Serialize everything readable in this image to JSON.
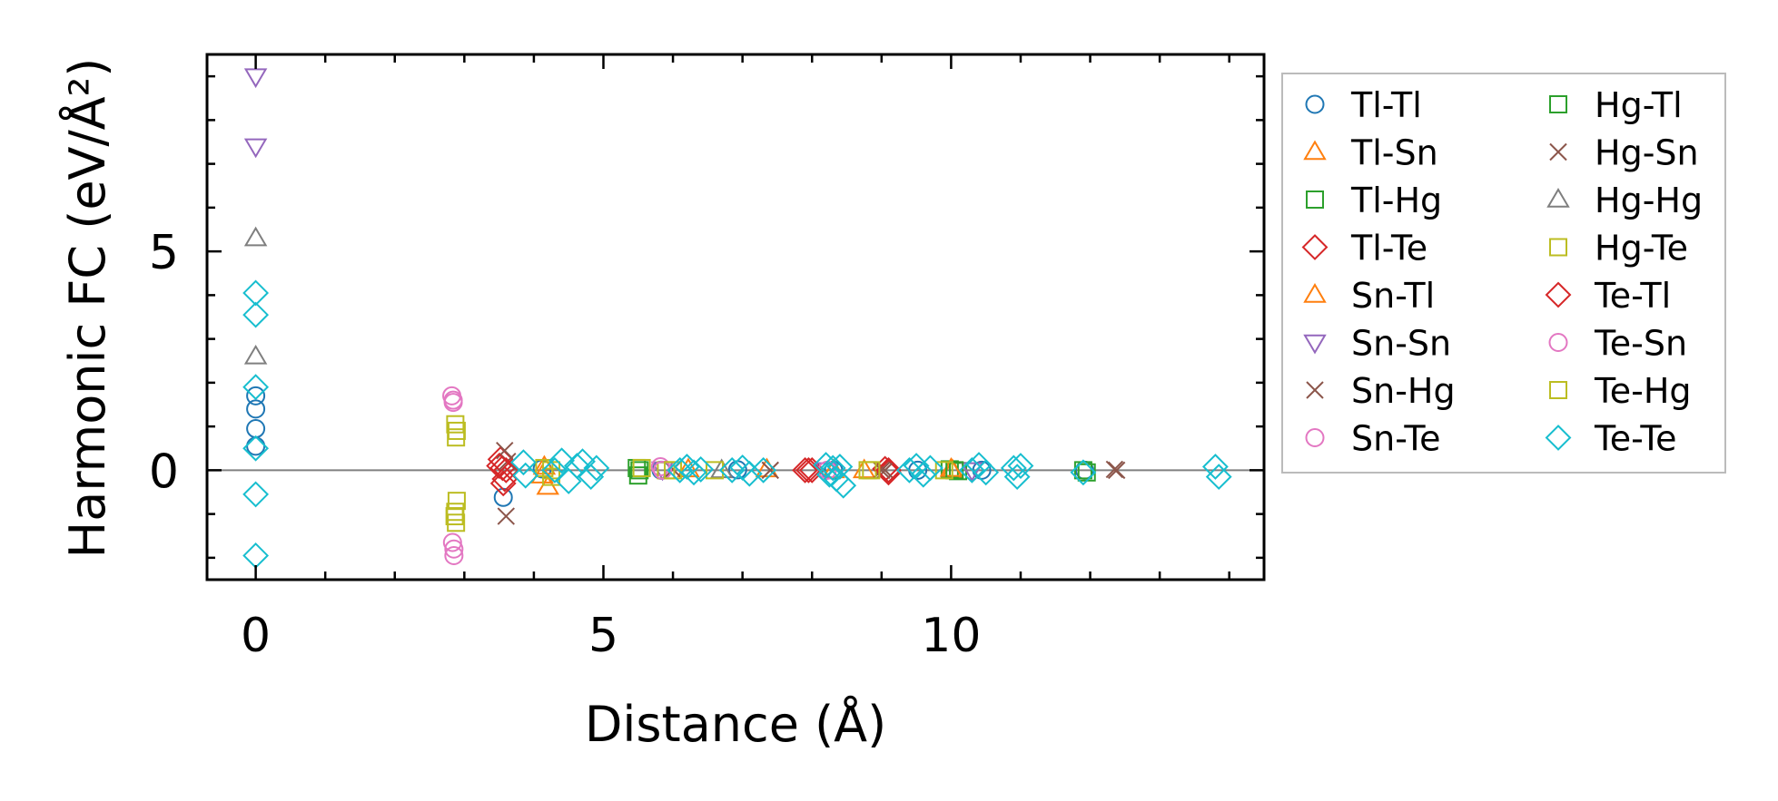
{
  "chart_data": {
    "type": "scatter",
    "xlabel": "Distance (Å)",
    "ylabel": "Harmonic FC (eV/Å²)",
    "xlim": [
      -0.7,
      14.5
    ],
    "ylim": [
      -2.5,
      9.5
    ],
    "x_ticks": [
      0,
      5,
      10
    ],
    "x_tick_labels": [
      "0",
      "5",
      "10"
    ],
    "y_ticks": [
      0,
      5
    ],
    "y_tick_labels": [
      "0",
      "5"
    ],
    "grid": false,
    "zero_line": true,
    "legend_position": "outside-right",
    "legend_columns": 2,
    "series": [
      {
        "name": "Tl-Tl",
        "marker": "circle",
        "color": "#1f77b4",
        "x": [
          0,
          0,
          0,
          0,
          3.56,
          4.12,
          5.83,
          6.93,
          8.31,
          9.52,
          10.44,
          11.92
        ],
        "y": [
          1.7,
          1.4,
          0.95,
          0.55,
          -0.62,
          0.03,
          0.0,
          0.01,
          0.0,
          0.0,
          0.0,
          0.0
        ]
      },
      {
        "name": "Tl-Sn",
        "marker": "triangle-up",
        "color": "#ff7f0e",
        "x": [
          4.12,
          4.2,
          6.22,
          8.31,
          10.02
        ],
        "y": [
          -0.12,
          -0.38,
          0.02,
          0.0,
          0.0
        ]
      },
      {
        "name": "Tl-Hg",
        "marker": "square",
        "color": "#2ca02c",
        "x": [
          5.48,
          5.5,
          9.98,
          10.1,
          11.9
        ],
        "y": [
          0.05,
          -0.12,
          0.02,
          -0.02,
          0.0
        ]
      },
      {
        "name": "Tl-Te",
        "marker": "diamond",
        "color": "#d62728",
        "x": [
          3.52,
          3.55,
          3.58,
          7.9,
          8.0,
          9.05,
          9.1
        ],
        "y": [
          0.25,
          0.05,
          -0.2,
          0.0,
          0.0,
          0.03,
          -0.05
        ]
      },
      {
        "name": "Sn-Tl",
        "marker": "triangle-up",
        "color": "#ff7f0e",
        "x": [
          4.15,
          7.35,
          8.75,
          10.0
        ],
        "y": [
          0.08,
          0.02,
          0.0,
          0.03
        ]
      },
      {
        "name": "Sn-Sn",
        "marker": "triangle-down",
        "color": "#9467bd",
        "x": [
          0,
          0,
          5.85,
          8.2,
          10.3
        ],
        "y": [
          9.0,
          7.4,
          0.02,
          0.0,
          0.0
        ]
      },
      {
        "name": "Sn-Hg",
        "marker": "x",
        "color": "#8c564b",
        "x": [
          3.58,
          3.6,
          6.0,
          9.0,
          12.38
        ],
        "y": [
          0.45,
          -1.05,
          0.02,
          0.0,
          0.0
        ]
      },
      {
        "name": "Sn-Te",
        "marker": "circle",
        "color": "#e377c2",
        "x": [
          2.82,
          2.84,
          2.83,
          2.85,
          5.82,
          8.22
        ],
        "y": [
          1.7,
          1.55,
          -1.65,
          -1.95,
          0.08,
          0.0
        ]
      },
      {
        "name": "Hg-Tl",
        "marker": "square",
        "color": "#2ca02c",
        "x": [
          5.52,
          10.05,
          11.95
        ],
        "y": [
          0.0,
          0.0,
          -0.05
        ]
      },
      {
        "name": "Hg-Sn",
        "marker": "x",
        "color": "#8c564b",
        "x": [
          3.62,
          7.4,
          9.05,
          12.35
        ],
        "y": [
          0.2,
          0.0,
          0.0,
          0.02
        ]
      },
      {
        "name": "Hg-Hg",
        "marker": "triangle-up",
        "color": "#7f7f7f",
        "x": [
          0,
          0,
          6.7
        ],
        "y": [
          5.3,
          2.6,
          0.0
        ]
      },
      {
        "name": "Hg-Te",
        "marker": "square",
        "color": "#bcbd22",
        "x": [
          2.87,
          2.88,
          2.89,
          2.87,
          2.88,
          4.15,
          4.25,
          5.55,
          5.9,
          6.6,
          8.8,
          9.9
        ],
        "y": [
          1.05,
          0.75,
          -0.7,
          -0.95,
          -1.2,
          0.05,
          -0.15,
          0.05,
          0.0,
          0.0,
          0.0,
          0.0
        ]
      },
      {
        "name": "Te-Tl",
        "marker": "diamond",
        "color": "#d62728",
        "x": [
          3.5,
          3.56,
          3.6,
          7.95,
          9.1
        ],
        "y": [
          0.1,
          -0.3,
          0.0,
          0.0,
          0.0
        ]
      },
      {
        "name": "Te-Sn",
        "marker": "circle",
        "color": "#e377c2",
        "x": [
          2.84,
          2.85,
          5.85
        ],
        "y": [
          1.6,
          -1.8,
          0.0
        ]
      },
      {
        "name": "Te-Hg",
        "marker": "square",
        "color": "#bcbd22",
        "x": [
          2.89,
          2.86,
          4.25,
          6.0,
          8.85
        ],
        "y": [
          0.9,
          -1.05,
          0.0,
          0.0,
          0.0
        ]
      },
      {
        "name": "Te-Te",
        "marker": "diamond",
        "color": "#17becf",
        "x": [
          0,
          0,
          0,
          0,
          0,
          0,
          3.85,
          3.88,
          4.3,
          4.4,
          4.5,
          4.62,
          4.7,
          4.82,
          4.9,
          6.1,
          6.2,
          6.3,
          6.4,
          6.85,
          7.0,
          7.1,
          7.3,
          8.2,
          8.25,
          8.3,
          8.35,
          8.4,
          8.45,
          9.4,
          9.5,
          9.6,
          9.7,
          10.3,
          10.4,
          10.5,
          10.9,
          10.95,
          11.0,
          11.9,
          13.8,
          13.85
        ],
        "y": [
          4.05,
          3.55,
          1.9,
          0.5,
          -0.55,
          -1.95,
          0.18,
          -0.12,
          0.0,
          0.22,
          -0.25,
          0.1,
          0.2,
          -0.15,
          0.05,
          0.0,
          0.08,
          -0.05,
          0.02,
          0.0,
          0.06,
          -0.08,
          0.0,
          0.12,
          -0.1,
          0.05,
          -0.2,
          0.08,
          -0.35,
          0.0,
          0.1,
          -0.1,
          0.05,
          0.0,
          0.12,
          -0.05,
          0.05,
          -0.15,
          0.1,
          -0.05,
          0.08,
          -0.15
        ]
      }
    ]
  }
}
